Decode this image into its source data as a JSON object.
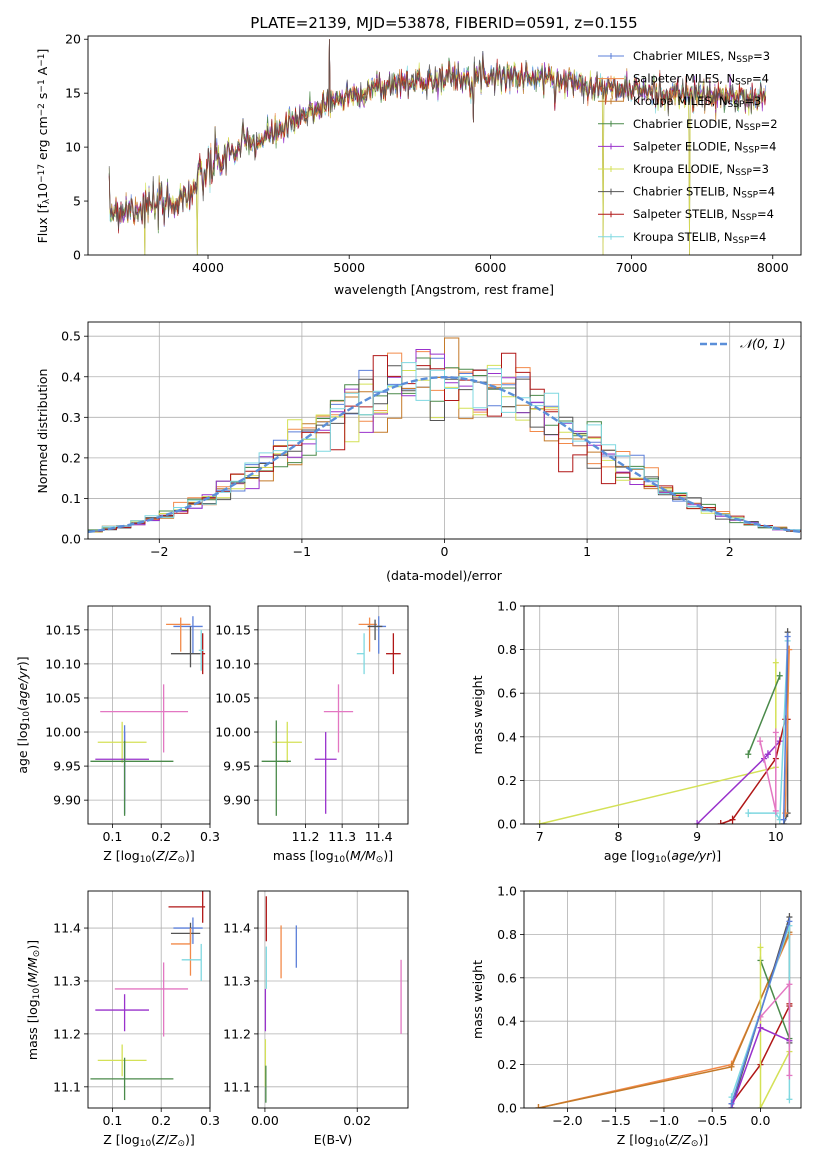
{
  "figure": {
    "title": "PLATE=2139, MJD=53878, FIBERID=0591, z=0.155"
  },
  "colors": {
    "Chabrier MILES": "#5b7fd9",
    "Salpeter MILES": "#f28a4a",
    "Kroupa MILES": "#c47a2a",
    "Chabrier ELODIE": "#4a8a4a",
    "Salpeter ELODIE": "#9932cc",
    "Kroupa ELODIE": "#d4e157",
    "Chabrier STELIB": "#555555",
    "Salpeter STELIB": "#b01717",
    "Kroupa STELIB": "#7fd8e0",
    "extra_pink": "#e377c2",
    "gaussian": "#5b8fd9"
  },
  "chart_data": [
    {
      "id": "spectrum",
      "type": "line",
      "xlabel": "wavelength [Angstrom, rest frame]",
      "ylabel_main": "Flux [f",
      "ylabel_sub": "λ",
      "ylabel_rest": "10",
      "ylabel_exp1": "−17",
      "ylabel_mid": " erg cm",
      "ylabel_exp2": "−2",
      "ylabel_mid2": " s",
      "ylabel_exp3": "−1",
      "ylabel_end": " A",
      "ylabel_exp4": "−1",
      "ylabel_close": "]",
      "xlim": [
        3150,
        8200
      ],
      "ylim": [
        0,
        20.3
      ],
      "xticks": [
        4000,
        5000,
        6000,
        7000,
        8000
      ],
      "yticks": [
        0,
        5,
        10,
        15,
        20
      ],
      "legend_placement": "right",
      "legend": [
        {
          "name": "Chabrier MILES",
          "n": "3"
        },
        {
          "name": "Salpeter MILES",
          "n": "4"
        },
        {
          "name": "Kroupa MILES",
          "n": "3"
        },
        {
          "name": "Chabrier ELODIE",
          "n": "2"
        },
        {
          "name": "Salpeter ELODIE",
          "n": "4"
        },
        {
          "name": "Kroupa ELODIE",
          "n": "3"
        },
        {
          "name": "Chabrier STELIB",
          "n": "4"
        },
        {
          "name": "Salpeter STELIB",
          "n": "4"
        },
        {
          "name": "Kroupa STELIB",
          "n": "4"
        }
      ],
      "legend_prefix": "N",
      "legend_sub": "SSP",
      "continuum_knots": [
        [
          3300,
          4.2
        ],
        [
          3500,
          4.4
        ],
        [
          3700,
          4.6
        ],
        [
          3800,
          5.2
        ],
        [
          3900,
          6.0
        ],
        [
          4000,
          8.0
        ],
        [
          4200,
          9.8
        ],
        [
          4400,
          10.8
        ],
        [
          4600,
          12.2
        ],
        [
          4800,
          13.8
        ],
        [
          5000,
          14.8
        ],
        [
          5200,
          15.5
        ],
        [
          5400,
          16.0
        ],
        [
          5600,
          16.3
        ],
        [
          5800,
          16.5
        ],
        [
          6000,
          16.7
        ],
        [
          6200,
          16.5
        ],
        [
          6400,
          16.3
        ],
        [
          6600,
          16.0
        ],
        [
          6800,
          15.5
        ],
        [
          7000,
          15.3
        ],
        [
          7200,
          15.0
        ],
        [
          7400,
          14.8
        ],
        [
          7600,
          14.7
        ],
        [
          7800,
          14.6
        ],
        [
          7950,
          14.5
        ]
      ],
      "dips": [
        [
          3550,
          0.0
        ],
        [
          3925,
          0.0
        ],
        [
          6800,
          0.0
        ],
        [
          7410,
          0.0
        ],
        [
          5880,
          12.3
        ],
        [
          4860,
          20.0
        ]
      ]
    },
    {
      "id": "residuals",
      "type": "step",
      "xlabel": "(data-model)/error",
      "ylabel": "Normed distribution",
      "xlim": [
        -2.5,
        2.5
      ],
      "ylim": [
        0,
        0.535
      ],
      "xticks": [
        -2,
        -1,
        0,
        1,
        2
      ],
      "yticks": [
        0.0,
        0.1,
        0.2,
        0.3,
        0.4,
        0.5
      ],
      "legend": "𝒩(0, 1)",
      "legend_placement": "top-right",
      "bin_width": 0.1
    },
    {
      "id": "age_vs_Z",
      "type": "errorbar",
      "xlabel": "Z [log",
      "xlabel_sub": "10",
      "xlabel_rest": "(Z/Z",
      "xlabel_sun": "⊙",
      "xlabel_end": ")]",
      "ylabel": "age  [log10(age/yr)]",
      "xlim": [
        0.05,
        0.3
      ],
      "ylim": [
        9.865,
        10.185
      ],
      "xticks": [
        0.1,
        0.2,
        0.3
      ],
      "yticks": [
        9.9,
        9.95,
        10.0,
        10.05,
        10.1,
        10.15
      ],
      "points": [
        {
          "series": "Chabrier MILES",
          "x": 0.265,
          "y": 10.155,
          "xerr": [
            0.04,
            0.02
          ],
          "yerr": [
            0.04,
            0.015
          ]
        },
        {
          "series": "Salpeter MILES",
          "x": 0.24,
          "y": 10.158,
          "xerr": [
            0.03,
            0.02
          ],
          "yerr": [
            0.04,
            0.01
          ]
        },
        {
          "series": "Chabrier STELIB",
          "x": 0.26,
          "y": 10.115,
          "xerr": [
            0.04,
            0.02
          ],
          "yerr": [
            0.02,
            0.04
          ]
        },
        {
          "series": "Salpeter STELIB",
          "x": 0.285,
          "y": 10.115,
          "xerr": [
            0.005,
            0.005
          ],
          "yerr": [
            0.03,
            0.03
          ]
        },
        {
          "series": "Kroupa STELIB",
          "x": 0.282,
          "y": 10.12,
          "xerr": [
            0.005,
            0.005
          ],
          "yerr": [
            0.03,
            0.03
          ]
        },
        {
          "series": "extra_pink",
          "x": 0.205,
          "y": 10.03,
          "xerr": [
            0.13,
            0.05
          ],
          "yerr": [
            0.06,
            0.04
          ]
        },
        {
          "series": "Kroupa ELODIE",
          "x": 0.12,
          "y": 9.985,
          "xerr": [
            0.05,
            0.05
          ],
          "yerr": [
            0.03,
            0.03
          ]
        },
        {
          "series": "Salpeter ELODIE",
          "x": 0.125,
          "y": 9.96,
          "xerr": [
            0.06,
            0.05
          ],
          "yerr": [
            0.06,
            0.04
          ]
        },
        {
          "series": "Chabrier MILES",
          "x": 0.125,
          "y": 9.96,
          "xerr": [
            0.0,
            0.0
          ],
          "yerr": [
            0.08,
            0.05
          ]
        },
        {
          "series": "Chabrier ELODIE",
          "x": 0.125,
          "y": 9.957,
          "xerr": [
            0.07,
            0.1
          ],
          "yerr": [
            0.08,
            0.03
          ]
        }
      ]
    },
    {
      "id": "age_vs_mass",
      "type": "errorbar",
      "xlabel": "mass [log",
      "xlabel_sub": "10",
      "xlabel_rest": "(M/M",
      "xlabel_sun": "⊙",
      "xlabel_end": ")]",
      "xlim": [
        11.07,
        11.48
      ],
      "ylim": [
        9.865,
        10.185
      ],
      "xticks": [
        11.2,
        11.3,
        11.4
      ],
      "yticks": [
        9.9,
        9.95,
        10.0,
        10.05,
        10.1,
        10.15
      ],
      "points": [
        {
          "series": "Chabrier MILES",
          "x": 11.4,
          "y": 10.155,
          "xerr": [
            0.03,
            0.02
          ],
          "yerr": [
            0.04,
            0.015
          ]
        },
        {
          "series": "Salpeter MILES",
          "x": 11.375,
          "y": 10.158,
          "xerr": [
            0.03,
            0.02
          ],
          "yerr": [
            0.04,
            0.01
          ]
        },
        {
          "series": "Chabrier STELIB",
          "x": 11.39,
          "y": 10.155,
          "xerr": [
            0.02,
            0.02
          ],
          "yerr": [
            0.02,
            0.01
          ]
        },
        {
          "series": "Salpeter STELIB",
          "x": 11.44,
          "y": 10.115,
          "xerr": [
            0.02,
            0.02
          ],
          "yerr": [
            0.03,
            0.03
          ]
        },
        {
          "series": "Kroupa STELIB",
          "x": 11.36,
          "y": 10.115,
          "xerr": [
            0.02,
            0.0
          ],
          "yerr": [
            0.03,
            0.03
          ]
        },
        {
          "series": "extra_pink",
          "x": 11.29,
          "y": 10.03,
          "xerr": [
            0.04,
            0.04
          ],
          "yerr": [
            0.06,
            0.04
          ]
        },
        {
          "series": "Kroupa ELODIE",
          "x": 11.15,
          "y": 9.985,
          "xerr": [
            0.04,
            0.04
          ],
          "yerr": [
            0.03,
            0.03
          ]
        },
        {
          "series": "Salpeter ELODIE",
          "x": 11.255,
          "y": 9.96,
          "xerr": [
            0.03,
            0.03
          ],
          "yerr": [
            0.08,
            0.04
          ]
        },
        {
          "series": "Chabrier ELODIE",
          "x": 11.12,
          "y": 9.957,
          "xerr": [
            0.04,
            0.04
          ],
          "yerr": [
            0.08,
            0.06
          ]
        }
      ]
    },
    {
      "id": "mass_vs_Z",
      "type": "errorbar",
      "xlabel": "Z [log",
      "xlabel_sub": "10",
      "xlabel_rest": "(Z/Z",
      "xlabel_sun": "⊙",
      "xlabel_end": ")]",
      "ylabel": "mass [log10(M/M⊙)]",
      "xlim": [
        0.05,
        0.3
      ],
      "ylim": [
        11.06,
        11.47
      ],
      "xticks": [
        0.1,
        0.2,
        0.3
      ],
      "yticks": [
        11.1,
        11.2,
        11.3,
        11.4
      ],
      "points": [
        {
          "series": "Salpeter STELIB",
          "x": 0.285,
          "y": 11.44,
          "xerr": [
            0.07,
            0.005
          ],
          "yerr": [
            0.03,
            0.03
          ]
        },
        {
          "series": "Chabrier MILES",
          "x": 0.265,
          "y": 11.4,
          "xerr": [
            0.04,
            0.02
          ],
          "yerr": [
            0.03,
            0.02
          ]
        },
        {
          "series": "Chabrier STELIB",
          "x": 0.26,
          "y": 11.39,
          "xerr": [
            0.04,
            0.02
          ],
          "yerr": [
            0.02,
            0.02
          ]
        },
        {
          "series": "Salpeter MILES",
          "x": 0.26,
          "y": 11.37,
          "xerr": [
            0.04,
            0.0
          ],
          "yerr": [
            0.06,
            0.03
          ]
        },
        {
          "series": "Kroupa STELIB",
          "x": 0.282,
          "y": 11.34,
          "xerr": [
            0.04,
            0.0
          ],
          "yerr": [
            0.04,
            0.03
          ]
        },
        {
          "series": "extra_pink",
          "x": 0.205,
          "y": 11.285,
          "xerr": [
            0.1,
            0.05
          ],
          "yerr": [
            0.09,
            0.05
          ]
        },
        {
          "series": "Salpeter ELODIE",
          "x": 0.125,
          "y": 11.245,
          "xerr": [
            0.06,
            0.05
          ],
          "yerr": [
            0.04,
            0.03
          ]
        },
        {
          "series": "Kroupa ELODIE",
          "x": 0.12,
          "y": 11.15,
          "xerr": [
            0.05,
            0.05
          ],
          "yerr": [
            0.03,
            0.03
          ]
        },
        {
          "series": "Chabrier ELODIE",
          "x": 0.125,
          "y": 11.115,
          "xerr": [
            0.07,
            0.1
          ],
          "yerr": [
            0.04,
            0.04
          ]
        }
      ]
    },
    {
      "id": "mass_vs_ebv",
      "type": "errorbar",
      "xlabel": "E(B-V)",
      "xlim": [
        -0.0015,
        0.031
      ],
      "ylim": [
        11.06,
        11.47
      ],
      "xticks": [
        0.0,
        0.02
      ],
      "xticklabels": [
        "0.00",
        "0.02"
      ],
      "yticks": [
        11.1,
        11.2,
        11.3,
        11.4
      ],
      "points": [
        {
          "series": "Salpeter STELIB",
          "x": 0.0003,
          "y": 11.415,
          "yerr": [
            0.04,
            0.045
          ]
        },
        {
          "series": "Kroupa STELIB",
          "x": 0.0003,
          "y": 11.325,
          "yerr": [
            0.04,
            0.04
          ]
        },
        {
          "series": "Salpeter ELODIE",
          "x": 0.0001,
          "y": 11.245,
          "yerr": [
            0.04,
            0.04
          ]
        },
        {
          "series": "Kroupa ELODIE",
          "x": 0.0001,
          "y": 11.15,
          "yerr": [
            0.05,
            0.04
          ]
        },
        {
          "series": "Chabrier ELODIE",
          "x": 0.0002,
          "y": 11.1,
          "yerr": [
            0.03,
            0.04
          ]
        },
        {
          "series": "Salpeter MILES",
          "x": 0.0035,
          "y": 11.355,
          "yerr": [
            0.05,
            0.05
          ]
        },
        {
          "series": "Chabrier MILES",
          "x": 0.0068,
          "y": 11.375,
          "yerr": [
            0.05,
            0.03
          ]
        },
        {
          "series": "extra_pink",
          "x": 0.0295,
          "y": 11.27,
          "yerr": [
            0.07,
            0.07
          ]
        }
      ]
    },
    {
      "id": "weight_vs_age",
      "type": "line",
      "xlabel": "age  [log10(age/yr)]",
      "ylabel": "mass weight",
      "xlim": [
        6.8,
        10.32
      ],
      "ylim": [
        0,
        1.0
      ],
      "xticks": [
        7,
        8,
        9,
        10
      ],
      "yticks": [
        0.0,
        0.2,
        0.4,
        0.6,
        0.8,
        1.0
      ],
      "series": [
        {
          "name": "Kroupa ELODIE",
          "x": [
            7.0,
            10.0,
            10.0
          ],
          "y": [
            0.0,
            0.26,
            0.74
          ]
        },
        {
          "name": "Salpeter ELODIE",
          "x": [
            9.0,
            9.85,
            9.9,
            10.05
          ],
          "y": [
            0.0,
            0.3,
            0.32,
            0.38
          ]
        },
        {
          "name": "Salpeter STELIB",
          "x": [
            9.3,
            9.45,
            10.0,
            10.12,
            10.15
          ],
          "y": [
            0.0,
            0.02,
            0.3,
            0.48,
            0.48
          ]
        },
        {
          "name": "Chabrier ELODIE",
          "x": [
            9.65,
            10.05
          ],
          "y": [
            0.32,
            0.68
          ]
        },
        {
          "name": "Kroupa STELIB",
          "x": [
            9.65,
            10.0,
            10.05,
            10.15
          ],
          "y": [
            0.05,
            0.05,
            0.02,
            0.84
          ]
        },
        {
          "name": "extra_pink",
          "x": [
            9.8,
            10.0,
            10.0
          ],
          "y": [
            0.38,
            0.06,
            0.42
          ]
        },
        {
          "name": "Chabrier STELIB",
          "x": [
            10.1,
            10.15,
            10.15
          ],
          "y": [
            0.0,
            0.05,
            0.88
          ]
        },
        {
          "name": "Salpeter MILES",
          "x": [
            10.12,
            10.17
          ],
          "y": [
            0.05,
            0.8
          ]
        },
        {
          "name": "Chabrier MILES",
          "x": [
            10.1,
            10.15
          ],
          "y": [
            0.02,
            0.86
          ]
        }
      ]
    },
    {
      "id": "weight_vs_Z",
      "type": "line",
      "xlabel": "Z [log10(Z/Z⊙)]",
      "ylabel": "mass weight",
      "xlim": [
        -2.45,
        0.42
      ],
      "ylim": [
        0,
        1.0
      ],
      "xticks": [
        -2.0,
        -1.5,
        -1.0,
        -0.5,
        0.0
      ],
      "xticklabels": [
        "−2.0",
        "−1.5",
        "−1.0",
        "−0.5",
        "0.0"
      ],
      "yticks": [
        0.0,
        0.2,
        0.4,
        0.6,
        0.8,
        1.0
      ],
      "series": [
        {
          "name": "Salpeter MILES",
          "x": [
            -2.3,
            -0.3,
            0.3
          ],
          "y": [
            0.0,
            0.2,
            0.8
          ]
        },
        {
          "name": "Kroupa MILES",
          "x": [
            -2.3,
            -0.3,
            0.3
          ],
          "y": [
            0.0,
            0.19,
            0.81
          ]
        },
        {
          "name": "Chabrier STELIB",
          "x": [
            -0.3,
            0.3,
            0.3
          ],
          "y": [
            0.0,
            0.88,
            0.3
          ]
        },
        {
          "name": "Salpeter STELIB",
          "x": [
            -0.3,
            0.0,
            0.3,
            0.3
          ],
          "y": [
            0.02,
            0.2,
            0.47,
            0.48
          ]
        },
        {
          "name": "Kroupa STELIB",
          "x": [
            -0.3,
            0.3,
            0.3
          ],
          "y": [
            0.05,
            0.84,
            0.04
          ]
        },
        {
          "name": "Chabrier ELODIE",
          "x": [
            0.0,
            0.3
          ],
          "y": [
            0.68,
            0.32
          ]
        },
        {
          "name": "Kroupa ELODIE",
          "x": [
            0.0,
            0.0,
            0.3
          ],
          "y": [
            0.74,
            0.0,
            0.26
          ]
        },
        {
          "name": "Salpeter ELODIE",
          "x": [
            -0.3,
            0.0,
            0.3
          ],
          "y": [
            0.0,
            0.37,
            0.31
          ]
        },
        {
          "name": "extra_pink",
          "x": [
            0.0,
            0.3,
            0.3
          ],
          "y": [
            0.42,
            0.57,
            0.15
          ]
        },
        {
          "name": "Chabrier MILES",
          "x": [
            -0.3,
            0.3
          ],
          "y": [
            0.02,
            0.86
          ]
        }
      ]
    }
  ]
}
